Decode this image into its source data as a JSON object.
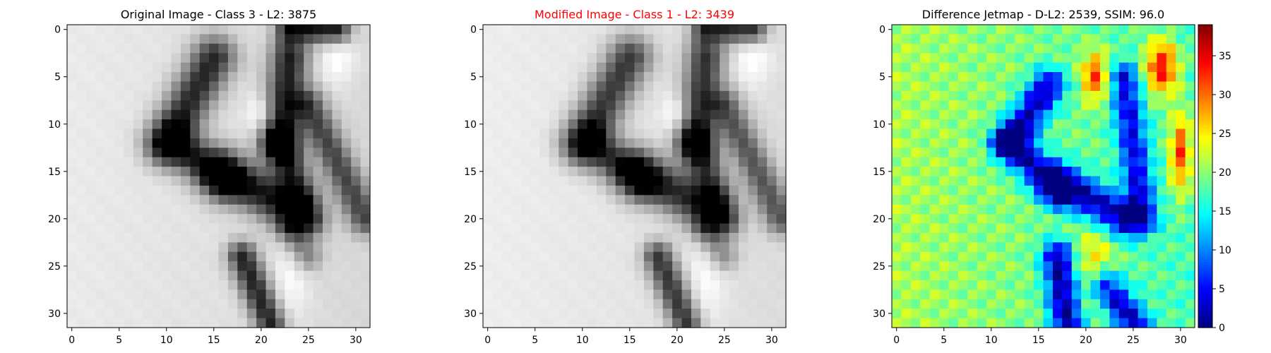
{
  "figure": {
    "background": "#ffffff",
    "title_colors": {
      "default": "#000000",
      "highlight": "#ff0000"
    }
  },
  "chart_data": [
    {
      "type": "heatmap",
      "title": "Original Image - Class 3 - L2: 3875",
      "title_color": "#000000",
      "colormap": "gray",
      "grid": false,
      "xlim": [
        -0.5,
        31.5
      ],
      "ylim": [
        31.5,
        -0.5
      ],
      "xticks": [
        0,
        5,
        10,
        15,
        20,
        25,
        30
      ],
      "yticks": [
        0,
        5,
        10,
        15,
        20,
        25,
        30
      ],
      "image_size": [
        32,
        32
      ]
    },
    {
      "type": "heatmap",
      "title": "Modified Image - Class 1 - L2: 3439",
      "title_color": "#ff0000",
      "colormap": "gray",
      "grid": false,
      "xlim": [
        -0.5,
        31.5
      ],
      "ylim": [
        31.5,
        -0.5
      ],
      "xticks": [
        0,
        5,
        10,
        15,
        20,
        25,
        30
      ],
      "yticks": [
        0,
        5,
        10,
        15,
        20,
        25,
        30
      ],
      "image_size": [
        32,
        32
      ]
    },
    {
      "type": "heatmap",
      "title": "Difference Jetmap - D-L2: 2539, SSIM: 96.0",
      "title_color": "#000000",
      "colormap": "jet",
      "grid": false,
      "xlim": [
        -0.5,
        31.5
      ],
      "ylim": [
        31.5,
        -0.5
      ],
      "xticks": [
        0,
        5,
        10,
        15,
        20,
        25,
        30
      ],
      "yticks": [
        0,
        5,
        10,
        15,
        20,
        25,
        30
      ],
      "image_size": [
        32,
        32
      ],
      "colorbar": {
        "range": [
          0,
          39
        ],
        "ticks": [
          0,
          5,
          10,
          15,
          20,
          25,
          30,
          35
        ]
      }
    }
  ]
}
